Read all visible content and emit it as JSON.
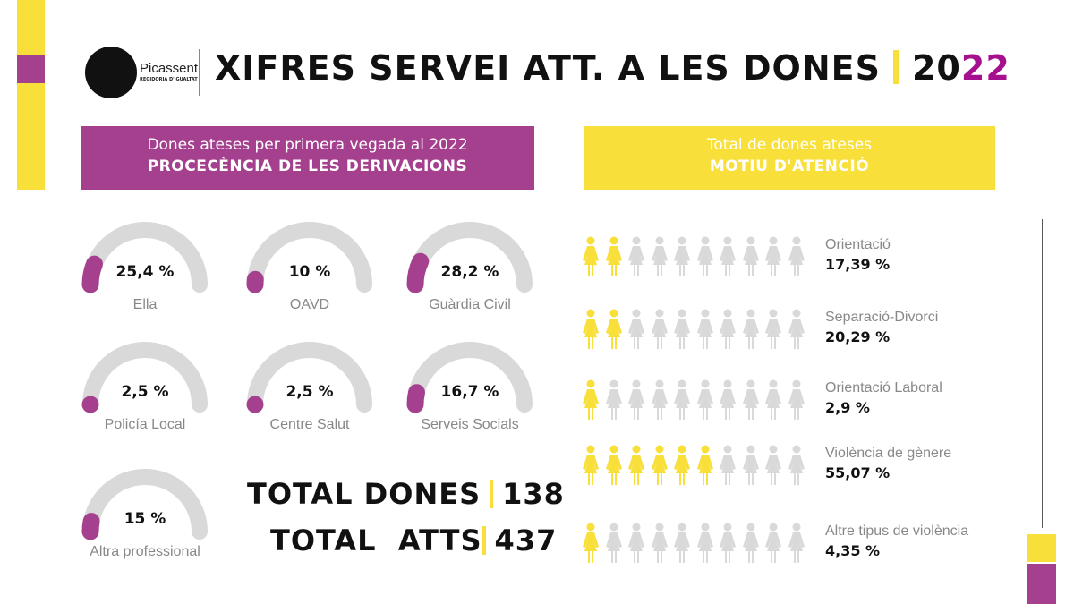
{
  "header": {
    "logo_name": "Picassent",
    "logo_sub": "REGIDORIA D'IGUALTAT",
    "title": "XIFRES SERVEI ATT. A LES DONES",
    "year_a": "20",
    "year_b": "22"
  },
  "left_header": {
    "line1": "Dones ateses per primera vegada al 2022",
    "line2": "PROCECÈNCIA DE LES DERIVACIONS"
  },
  "right_header": {
    "line1": "Total de dones ateses",
    "line2": "MOTIU D'ATENCIÓ"
  },
  "totals": {
    "dones_label": "TOTAL DONES",
    "dones_value": "138",
    "atts_label": "TOTAL  ATTS",
    "atts_value": "437"
  },
  "colors": {
    "purple": "#a5408f",
    "yellow": "#f9df3a",
    "grey": "#d9d9d9"
  },
  "chart_data": [
    {
      "type": "gauge",
      "title": "PROCECÈNCIA DE LES DERIVACIONS",
      "categories": [
        "Ella",
        "OAVD",
        "Guàrdia Civil",
        "Policía Local",
        "Centre Salut",
        "Serveis Socials",
        "Altra professional"
      ],
      "values": [
        25.4,
        10,
        28.2,
        2.5,
        2.5,
        16.7,
        15
      ],
      "labels": [
        "25,4 %",
        "10 %",
        "28,2 %",
        "2,5 %",
        "2,5 %",
        "16,7 %",
        "15 %"
      ]
    },
    {
      "type": "pictograph",
      "title": "MOTIU D'ATENCIÓ",
      "categories": [
        "Orientació",
        "Separació-Divorci",
        "Orientació Laboral",
        "Violència de gènere",
        "Altre tipus de violència"
      ],
      "values": [
        17.39,
        20.29,
        2.9,
        55.07,
        4.35
      ],
      "labels": [
        "17,39 %",
        "20,29 %",
        "2,9 %",
        "55,07 %",
        "4,35 %"
      ],
      "icons_filled_of_10": [
        2,
        2,
        1,
        6,
        1
      ]
    }
  ]
}
